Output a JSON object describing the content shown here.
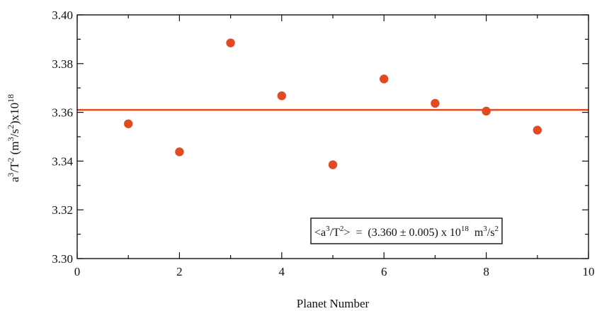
{
  "chart_data": {
    "type": "scatter",
    "title": "",
    "xlabel": "Planet Number",
    "ylabel_parts": [
      "a",
      "3",
      "/T",
      "2",
      " (m",
      "3",
      "/s",
      "2",
      ")x10",
      "18"
    ],
    "xlim": [
      0,
      10
    ],
    "ylim": [
      3.3,
      3.4
    ],
    "x_ticks": [
      0,
      2,
      4,
      6,
      8,
      10
    ],
    "x_tick_labels": [
      "0",
      "2",
      "4",
      "6",
      "8",
      "10"
    ],
    "y_ticks": [
      3.3,
      3.32,
      3.34,
      3.36,
      3.38,
      3.4
    ],
    "y_tick_labels": [
      "3.30",
      "3.32",
      "3.34",
      "3.36",
      "3.38",
      "3.40"
    ],
    "grid": false,
    "series": [
      {
        "x": [
          1,
          2,
          3,
          4,
          5,
          6,
          7,
          8,
          9
        ],
        "y": [
          3.3553,
          3.3438,
          3.3885,
          3.3668,
          3.3385,
          3.3737,
          3.3637,
          3.3605,
          3.3527
        ],
        "color": "#e24a22"
      }
    ],
    "reference_line": {
      "y": 3.361,
      "color": "#e24a22"
    },
    "annotation": {
      "parts": [
        "<a",
        "3",
        "/T",
        "2",
        ">  =  (3.360 ± 0.005) x 10",
        "18",
        "  m",
        "3",
        "/s",
        "2"
      ],
      "placement": "bottom-right"
    }
  }
}
